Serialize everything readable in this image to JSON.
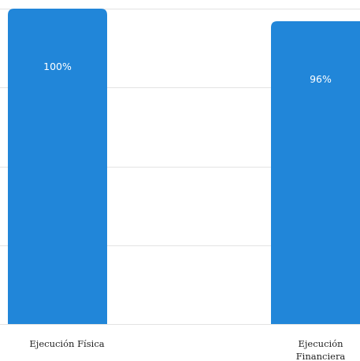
{
  "chart_data": {
    "type": "bar",
    "categories": [
      "Ejecución Física",
      "Ejecución Financiera"
    ],
    "category_lines": [
      [
        "Ejecución Física"
      ],
      [
        "Ejecución",
        "Financiera"
      ]
    ],
    "values": [
      100,
      96
    ],
    "data_labels": [
      "100%",
      "96%"
    ],
    "ylim": [
      0,
      100
    ],
    "grid": true,
    "bar_color": "#2186d9"
  }
}
